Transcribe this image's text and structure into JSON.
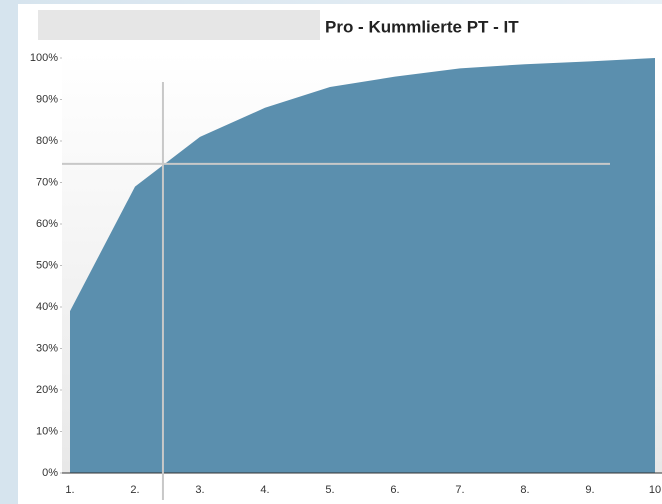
{
  "chart_data": {
    "type": "area",
    "title": "Pro - Kummlierte PT - IT",
    "categories": [
      "1.",
      "2.",
      "3.",
      "4.",
      "5.",
      "6.",
      "7.",
      "8.",
      "9.",
      "10"
    ],
    "values": [
      39,
      69,
      81,
      88,
      93,
      95.5,
      97.5,
      98.5,
      99.2,
      100
    ],
    "color": "#5b8fae",
    "ylim": [
      0,
      100
    ],
    "yticks": [
      {
        "value": 0,
        "label": "0%"
      },
      {
        "value": 10,
        "label": "10%"
      },
      {
        "value": 20,
        "label": "20%"
      },
      {
        "value": 30,
        "label": "30%"
      },
      {
        "value": 40,
        "label": "40%"
      },
      {
        "value": 50,
        "label": "50%"
      },
      {
        "value": 60,
        "label": "60%"
      },
      {
        "value": 70,
        "label": "70%"
      },
      {
        "value": 80,
        "label": "80%"
      },
      {
        "value": 90,
        "label": "90%"
      },
      {
        "value": 100,
        "label": "100%"
      }
    ],
    "crosshair": {
      "x": 2.43,
      "y": 74.5
    }
  }
}
